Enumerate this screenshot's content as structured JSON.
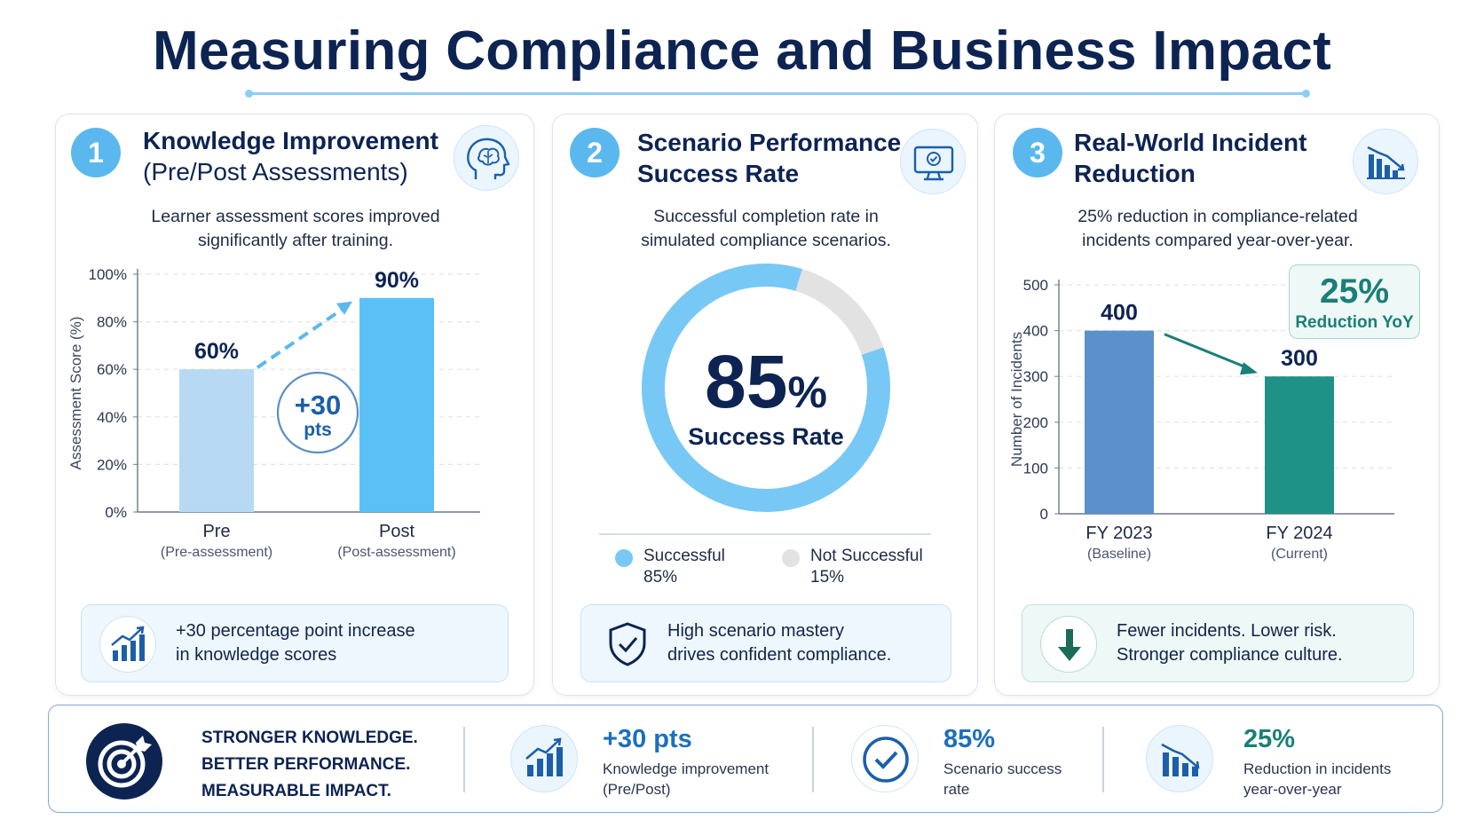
{
  "title": "Measuring Compliance and Business Impact",
  "colors": {
    "navy": "#0d2452",
    "light_blue": "#b7d9f4",
    "sky_blue": "#5bc0f5",
    "gray": "#e0e0e0",
    "steel_blue": "#5b90cc",
    "teal": "#1f9287"
  },
  "cards": [
    {
      "number": "1",
      "title_line1": "Knowledge Improvement",
      "title_line2": "(Pre/Post Assessments)",
      "icon": "brain-head-icon",
      "desc_line1": "Learner assessment scores improved",
      "desc_line2": "significantly after training.",
      "note_line1": "+30 percentage point increase",
      "note_line2": "in knowledge scores",
      "note_icon": "bar-chart-up-icon"
    },
    {
      "number": "2",
      "title_line1": "Scenario Performance",
      "title_line2": "Success Rate",
      "icon": "monitor-check-icon",
      "desc_line1": "Successful completion rate in",
      "desc_line2": "simulated compliance scenarios.",
      "note_line1": "High scenario mastery",
      "note_line2": "drives confident compliance.",
      "note_icon": "shield-check-icon"
    },
    {
      "number": "3",
      "title_line1": "Real-World Incident",
      "title_line2": "Reduction",
      "icon": "bar-chart-down-icon",
      "desc_line1": "25% reduction in compliance-related",
      "desc_line2": "incidents compared year-over-year.",
      "note_line1": "Fewer incidents. Lower risk.",
      "note_line2": "Stronger compliance culture.",
      "note_icon": "arrow-down-icon"
    }
  ],
  "chart_data": [
    {
      "type": "bar",
      "categories": [
        "Pre",
        "Post"
      ],
      "sublabels": [
        "(Pre-assessment)",
        "(Post-assessment)"
      ],
      "values": [
        60,
        90
      ],
      "value_labels": [
        "60%",
        "90%"
      ],
      "ylabel": "Assessment Score (%)",
      "ylim": [
        0,
        100
      ],
      "yticks": [
        0,
        20,
        40,
        60,
        80,
        100
      ],
      "ytick_labels": [
        "0%",
        "20%",
        "40%",
        "60%",
        "80%",
        "100%"
      ],
      "grid": true,
      "annotation": {
        "value": "+30",
        "unit": "pts"
      },
      "bar_colors": [
        "#b7d9f4",
        "#5bc0f5"
      ]
    },
    {
      "type": "pie",
      "style": "donut",
      "center_value": "85",
      "center_unit": "%",
      "center_label": "Success Rate",
      "slices": [
        {
          "name": "Successful",
          "value": 85,
          "label": "85%",
          "color": "#78c8f6"
        },
        {
          "name": "Not Successful",
          "value": 15,
          "label": "15%",
          "color": "#e2e2e2"
        }
      ]
    },
    {
      "type": "bar",
      "categories": [
        "FY 2023",
        "FY 2024"
      ],
      "sublabels": [
        "(Baseline)",
        "(Current)"
      ],
      "values": [
        400,
        300
      ],
      "value_labels": [
        "400",
        "300"
      ],
      "ylabel": "Number of Incidents",
      "ylim": [
        0,
        500
      ],
      "yticks": [
        0,
        100,
        200,
        300,
        400,
        500
      ],
      "ytick_labels": [
        "0",
        "100",
        "200",
        "300",
        "400",
        "500"
      ],
      "grid": true,
      "badge": {
        "value": "25%",
        "label": "Reduction YoY"
      },
      "bar_colors": [
        "#5b90cc",
        "#1f9287"
      ]
    }
  ],
  "bottom": {
    "slogan": [
      "STRONGER KNOWLEDGE.",
      "BETTER PERFORMANCE.",
      "MEASURABLE IMPACT."
    ],
    "slogan_icon": "target-arrow-icon",
    "stats": [
      {
        "value": "+30 pts",
        "label_line1": "Knowledge improvement",
        "label_line2": "(Pre/Post)",
        "icon": "bar-chart-up-icon"
      },
      {
        "value": "85%",
        "label_line1": "Scenario success",
        "label_line2": "rate",
        "icon": "check-circle-icon"
      },
      {
        "value": "25%",
        "label_line1": "Reduction in incidents",
        "label_line2": "year-over-year",
        "icon": "bar-chart-down-icon"
      }
    ]
  }
}
